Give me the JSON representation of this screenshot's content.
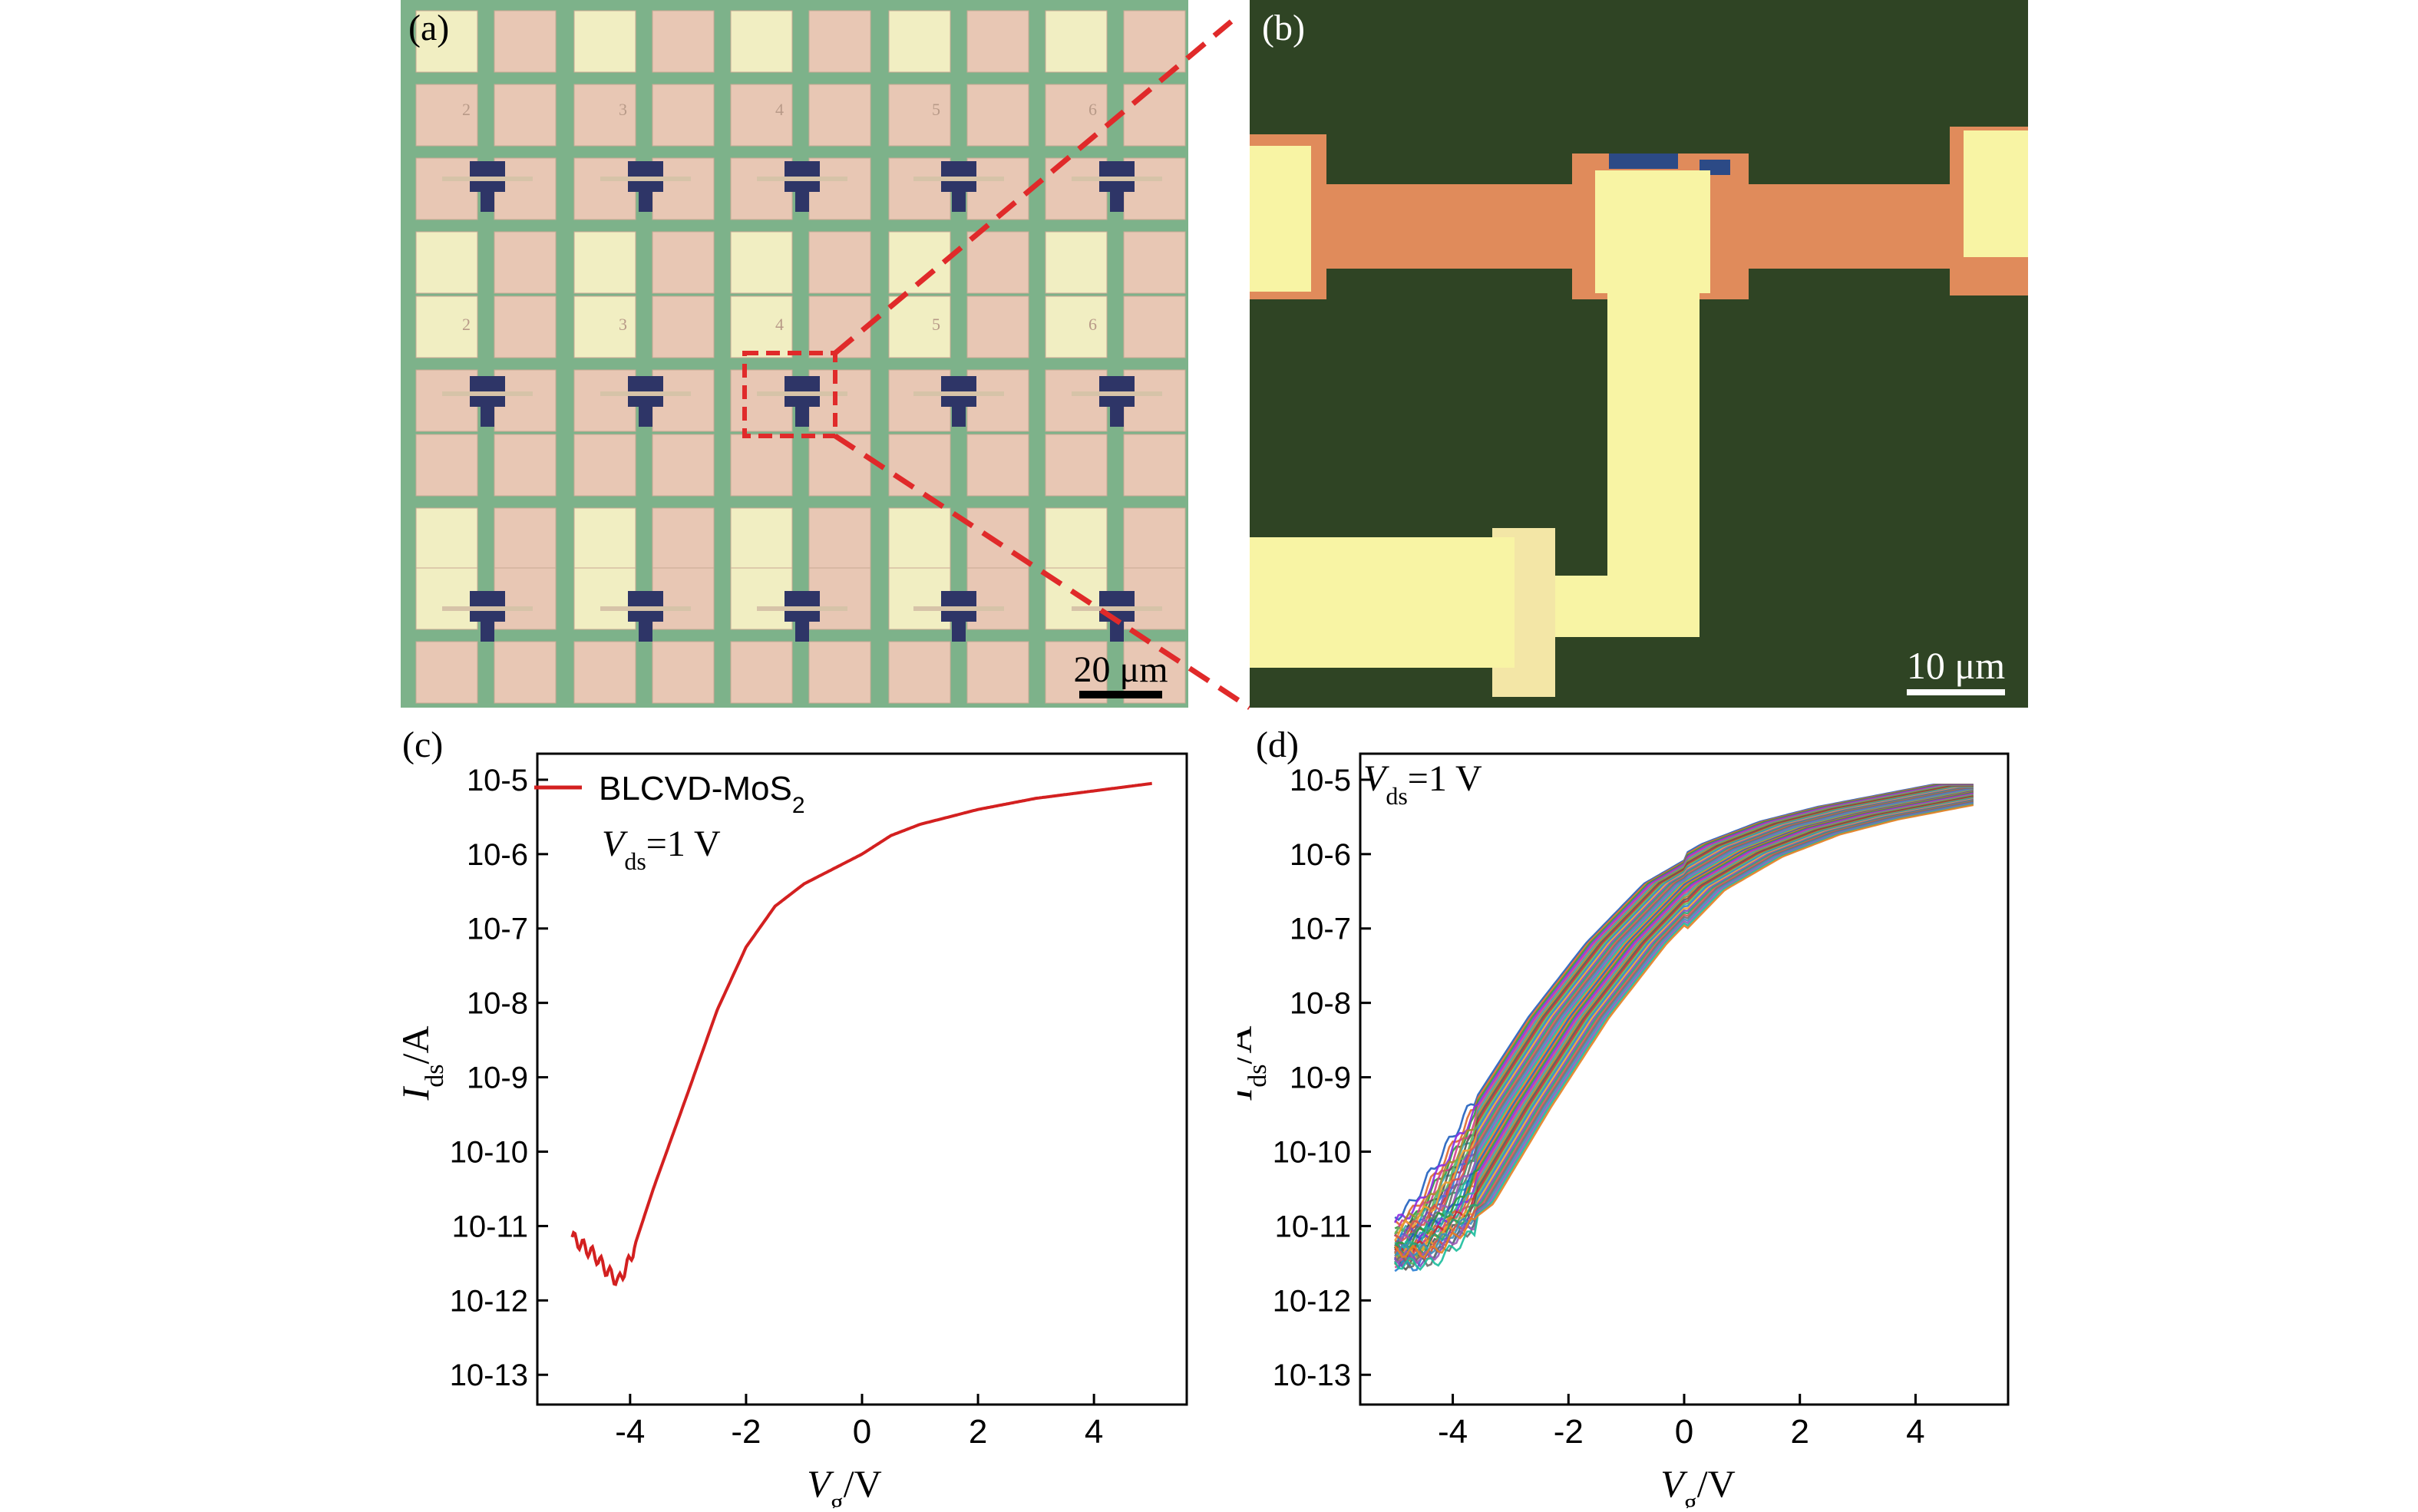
{
  "panels": {
    "a": {
      "label": "(a)",
      "scale_bar": "20 μm",
      "pad_numbers": [
        "2",
        "3",
        "4",
        "5",
        "6"
      ]
    },
    "b": {
      "label": "(b)",
      "scale_bar": "10 μm"
    },
    "c": {
      "label": "(c)"
    },
    "d": {
      "label": "(d)"
    }
  },
  "colors": {
    "substrate_a": "#7db28a",
    "pad_pink": "#e8c7b4",
    "pad_yellow": "#f1eec2",
    "gate_blue": "#2e3567",
    "substrate_b": "#2f4424",
    "electrode_orange": "#e08b5b",
    "electrode_yellow": "#f8f4a4",
    "curve_red": "#d32020"
  },
  "chart_data": [
    {
      "type": "line",
      "panel": "c",
      "xlabel": {
        "main": "V",
        "sub": "g",
        "unit": "/V"
      },
      "ylabel": {
        "main": "I",
        "sub": "ds",
        "unit": "/A"
      },
      "xlim": [
        -5.6,
        5.6
      ],
      "ylim_log10": [
        -13.4,
        -4.65
      ],
      "y_scale": "log",
      "x_ticks": [
        -4,
        -2,
        0,
        2,
        4
      ],
      "x_tick_labels": [
        "-4",
        "-2",
        "0",
        "2",
        "4"
      ],
      "y_ticks_exp": [
        -13,
        -12,
        -11,
        -10,
        -9,
        -8,
        -7,
        -6,
        -5
      ],
      "y_tick_labels": [
        "10-13",
        "10-12",
        "10-11",
        "10-10",
        "10-9",
        "10-8",
        "10-7",
        "10-6",
        "10-5"
      ],
      "legend": {
        "entry_main": "BLCVD-MoS",
        "entry_sub": "2",
        "placement": "top-left"
      },
      "annotation": {
        "main": "V",
        "sub": "ds",
        "rest": "=1 V"
      },
      "series": [
        {
          "name": "BLCVD-MoS2",
          "color": "#d32020",
          "x": [
            -5.0,
            -4.6,
            -4.4,
            -4.2,
            -4.0,
            -3.6,
            -3.0,
            -2.5,
            -2.0,
            -1.5,
            -1.0,
            -0.5,
            0.0,
            0.5,
            1.0,
            2.0,
            3.0,
            4.0,
            5.0
          ],
          "log_y": [
            -11.15,
            -11.4,
            -11.6,
            -11.75,
            -11.45,
            -10.5,
            -9.2,
            -8.1,
            -7.25,
            -6.7,
            -6.4,
            -6.2,
            -6.0,
            -5.75,
            -5.6,
            -5.4,
            -5.25,
            -5.15,
            -5.05
          ]
        }
      ]
    },
    {
      "type": "line",
      "panel": "d",
      "xlabel": {
        "main": "V",
        "sub": "g",
        "unit": "/V"
      },
      "ylabel": {
        "main": "I",
        "sub": "ds",
        "unit": "/A"
      },
      "xlim": [
        -5.6,
        5.6
      ],
      "ylim_log10": [
        -13.4,
        -4.65
      ],
      "y_scale": "log",
      "x_ticks": [
        -4,
        -2,
        0,
        2,
        4
      ],
      "x_tick_labels": [
        "-4",
        "-2",
        "0",
        "2",
        "4"
      ],
      "y_ticks_exp": [
        -13,
        -12,
        -11,
        -10,
        -9,
        -8,
        -7,
        -6,
        -5
      ],
      "y_tick_labels": [
        "10-13",
        "10-12",
        "10-11",
        "10-10",
        "10-9",
        "10-8",
        "10-7",
        "10-6",
        "10-5"
      ],
      "annotation": {
        "main": "V",
        "sub": "ds",
        "rest": "=1 V"
      },
      "base_curve": {
        "x": [
          -5.0,
          -4.0,
          -3.0,
          -2.0,
          -1.0,
          0.0,
          1.0,
          2.0,
          3.0,
          4.0,
          5.0
        ],
        "log_y": [
          -11.3,
          -10.7,
          -9.4,
          -8.2,
          -7.2,
          -6.4,
          -5.95,
          -5.65,
          -5.45,
          -5.3,
          -5.15
        ]
      },
      "device_count": 40,
      "device_shift_range": [
        -0.7,
        0.7
      ],
      "device_colors": [
        "#1f5fbf",
        "#e0682b",
        "#2e9c3c",
        "#8a2be2",
        "#d13f8e",
        "#3aa7a3",
        "#b0862c",
        "#555555",
        "#c9302c",
        "#5cb85c",
        "#2a7fd4",
        "#f0a030",
        "#7a4fbf",
        "#27a36f",
        "#d9534f",
        "#6d6d6d",
        "#3c8dbc",
        "#9b59b6",
        "#1abc9c",
        "#e67e22"
      ]
    }
  ]
}
